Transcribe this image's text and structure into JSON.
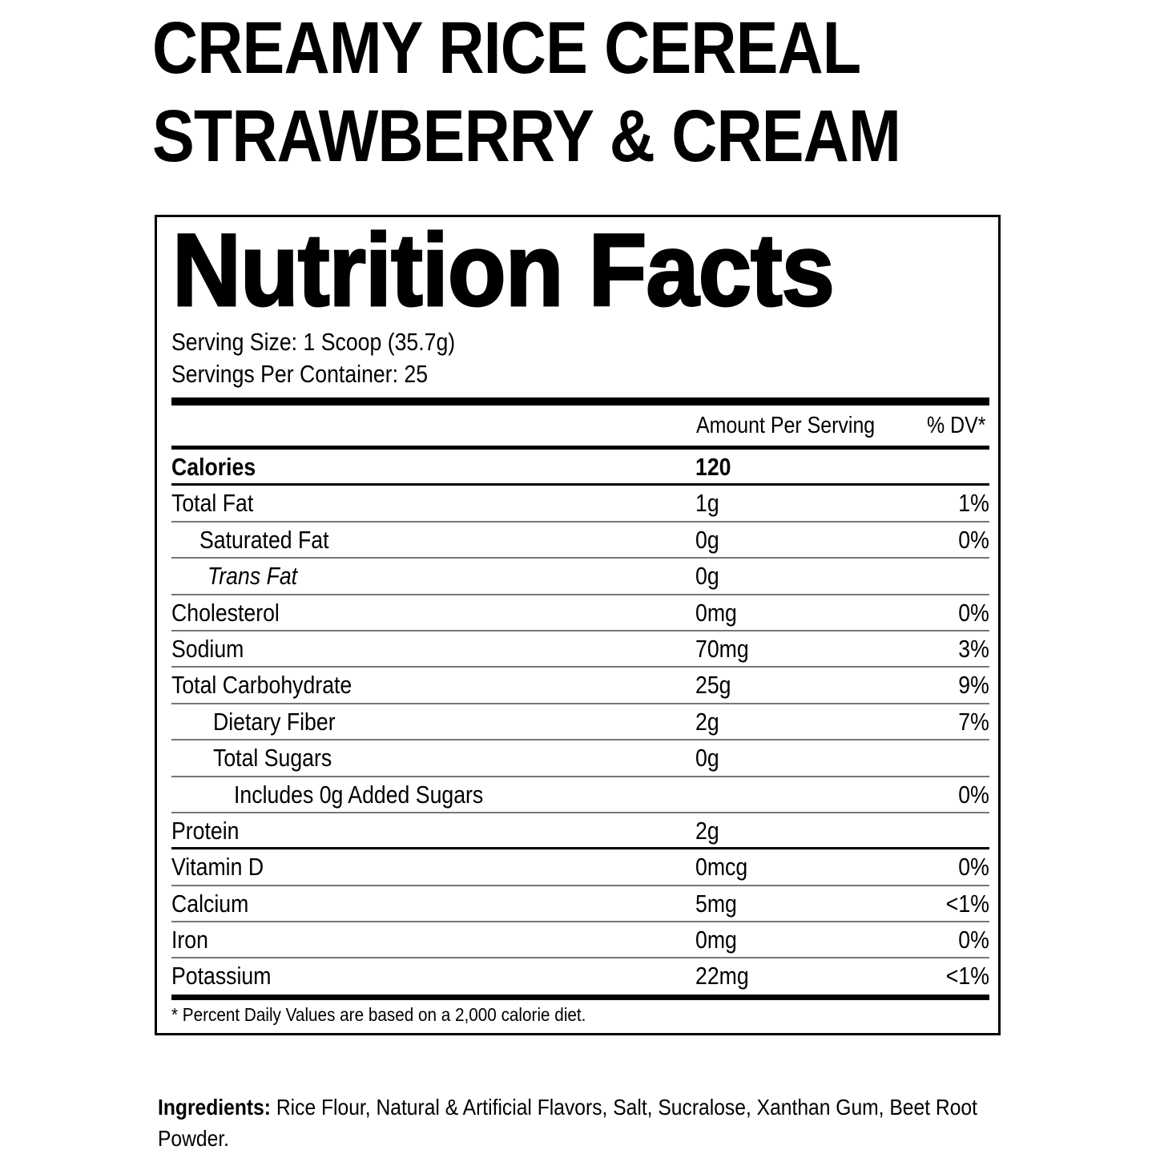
{
  "product": {
    "line1": "CREAMY RICE CEREAL",
    "line2": "STRAWBERRY & CREAM"
  },
  "label": {
    "title": "Nutrition Facts",
    "serving_size": "Serving Size: 1 Scoop (35.7g)",
    "servings_per_container": "Servings Per Container: 25",
    "header_amount": "Amount Per Serving",
    "header_dv": "% DV*",
    "rows": [
      {
        "name": "Calories",
        "amount": "120",
        "dv": "",
        "style": "bold",
        "indent": 0
      },
      {
        "name": "Total Fat",
        "amount": "1g",
        "dv": "1%",
        "indent": 0
      },
      {
        "name": "Saturated Fat",
        "amount": "0g",
        "dv": "0%",
        "indent": 35
      },
      {
        "name": "Trans Fat",
        "amount": "0g",
        "dv": "",
        "indent": 45,
        "italic": true
      },
      {
        "name": "Cholesterol",
        "amount": "0mg",
        "dv": "0%",
        "indent": 0
      },
      {
        "name": "Sodium",
        "amount": "70mg",
        "dv": "3%",
        "indent": 0
      },
      {
        "name": "Total Carbohydrate",
        "amount": "25g",
        "dv": "9%",
        "indent": 0
      },
      {
        "name": "Dietary Fiber",
        "amount": "2g",
        "dv": "7%",
        "indent": 52
      },
      {
        "name": "Total Sugars",
        "amount": "0g",
        "dv": "",
        "indent": 52
      },
      {
        "name": "Includes 0g Added Sugars",
        "amount": "",
        "dv": "0%",
        "indent": 78
      },
      {
        "name": "Protein",
        "amount": "2g",
        "dv": "",
        "indent": 0,
        "style": "thick"
      },
      {
        "name": "Vitamin D",
        "amount": "0mcg",
        "dv": "0%",
        "indent": 0
      },
      {
        "name": "Calcium",
        "amount": "5mg",
        "dv": "<1%",
        "indent": 0
      },
      {
        "name": "Iron",
        "amount": "0mg",
        "dv": "0%",
        "indent": 0
      },
      {
        "name": "Potassium",
        "amount": "22mg",
        "dv": "<1%",
        "indent": 0,
        "style": "last"
      }
    ],
    "footnote": "* Percent Daily Values are based on a 2,000 calorie diet."
  },
  "ingredients": {
    "label": "Ingredients:",
    "text": " Rice Flour, Natural & Artificial Flavors, Salt, Sucralose, Xanthan Gum, Beet Root Powder."
  }
}
